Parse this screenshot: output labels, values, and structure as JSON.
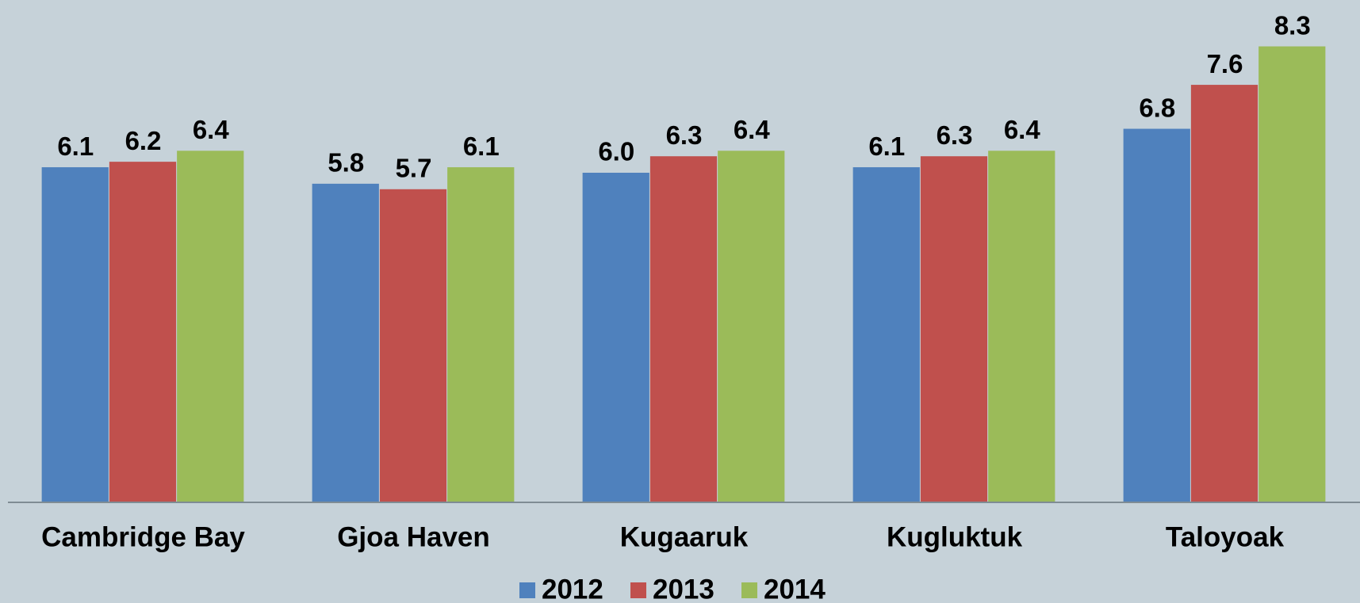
{
  "chart_data": {
    "type": "bar",
    "categories": [
      "Cambridge Bay",
      "Gjoa Haven",
      "Kugaaruk",
      "Kugluktuk",
      "Taloyoak"
    ],
    "series": [
      {
        "name": "2012",
        "color": "#4f81bd",
        "values": [
          6.1,
          5.8,
          6.0,
          6.1,
          6.8
        ],
        "value_labels": [
          "6.1",
          "5.8",
          "6.0",
          "6.1",
          "6.8"
        ]
      },
      {
        "name": "2013",
        "color": "#c0504d",
        "values": [
          6.2,
          5.7,
          6.3,
          6.3,
          7.6
        ],
        "value_labels": [
          "6.2",
          "5.7",
          "6.3",
          "6.3",
          "7.6"
        ]
      },
      {
        "name": "2014",
        "color": "#9bbb59",
        "values": [
          6.4,
          6.1,
          6.4,
          6.4,
          8.3
        ],
        "value_labels": [
          "6.4",
          "6.1",
          "6.4",
          "6.4",
          "8.3"
        ]
      }
    ],
    "ylim": [
      0,
      9
    ],
    "legend": "bottom"
  }
}
